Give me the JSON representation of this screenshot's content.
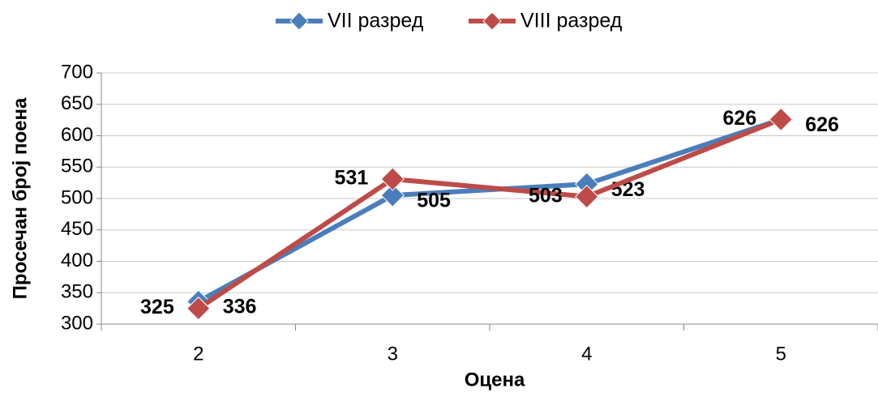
{
  "chart_data": {
    "type": "line",
    "categories": [
      "2",
      "3",
      "4",
      "5"
    ],
    "series": [
      {
        "name": "VII разред",
        "color": "#4a7ebb",
        "label_color": "#1f3a5f",
        "values": [
          336,
          505,
          523,
          626
        ]
      },
      {
        "name": "VIII разред",
        "color": "#be4b48",
        "label_color": "#632523",
        "values": [
          325,
          531,
          503,
          626
        ]
      }
    ],
    "xlabel": "Оцена",
    "ylabel": "Просечан број поена",
    "ylim": [
      300,
      700
    ],
    "yticks": [
      300,
      350,
      400,
      450,
      500,
      550,
      600,
      650,
      700
    ],
    "grid": true,
    "legend": "top"
  }
}
